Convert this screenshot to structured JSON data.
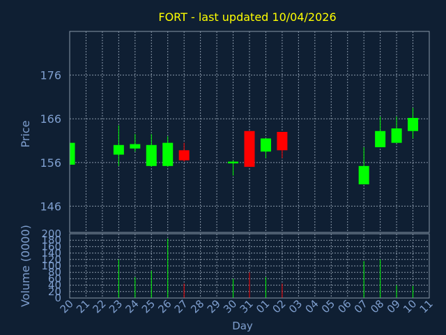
{
  "chart_data": [
    {
      "type": "candlestick",
      "title": "FORT - last updated 10/04/2026",
      "ylabel": "Price",
      "xlabel": "Day",
      "ylim": [
        140,
        186
      ],
      "yticks": [
        146,
        156,
        166,
        176
      ],
      "grid": true,
      "x_labels": [
        "20",
        "21",
        "22",
        "23",
        "24",
        "25",
        "26",
        "27",
        "28",
        "29",
        "30",
        "31",
        "01",
        "02",
        "03",
        "04",
        "05",
        "06",
        "07",
        "08",
        "09",
        "10",
        "11"
      ],
      "candles": [
        {
          "day": "20",
          "open": 155.5,
          "close": 160.5,
          "high": 160.5,
          "low": 155.5
        },
        {
          "day": "23",
          "open": 157.8,
          "close": 160.0,
          "high": 164.5,
          "low": 155.2
        },
        {
          "day": "24",
          "open": 159.2,
          "close": 160.2,
          "high": 162.5,
          "low": 158.5
        },
        {
          "day": "25",
          "open": 155.2,
          "close": 160.0,
          "high": 162.5,
          "low": 155.0
        },
        {
          "day": "26",
          "open": 155.2,
          "close": 160.5,
          "high": 162.0,
          "low": 155.0
        },
        {
          "day": "27",
          "open": 158.8,
          "close": 156.5,
          "high": 160.5,
          "low": 156.2
        },
        {
          "day": "30",
          "open": 155.8,
          "close": 156.2,
          "high": 156.5,
          "low": 153.0
        },
        {
          "day": "31",
          "open": 163.2,
          "close": 155.0,
          "high": 163.2,
          "low": 155.0
        },
        {
          "day": "01",
          "open": 158.5,
          "close": 161.5,
          "high": 161.5,
          "low": 157.0
        },
        {
          "day": "02",
          "open": 163.0,
          "close": 158.8,
          "high": 163.0,
          "low": 157.0
        },
        {
          "day": "07",
          "open": 151.0,
          "close": 155.2,
          "high": 159.5,
          "low": 151.0
        },
        {
          "day": "08",
          "open": 159.5,
          "close": 163.2,
          "high": 166.5,
          "low": 159.5
        },
        {
          "day": "09",
          "open": 160.5,
          "close": 163.8,
          "high": 166.5,
          "low": 160.5
        },
        {
          "day": "10",
          "open": 163.2,
          "close": 166.2,
          "high": 168.5,
          "low": 161.5
        }
      ]
    },
    {
      "type": "bar",
      "ylabel": "Volume (0000)",
      "ylim": [
        0,
        200
      ],
      "yticks": [
        0,
        20,
        40,
        60,
        80,
        100,
        120,
        140,
        160,
        180,
        200
      ],
      "grid": true,
      "bars": [
        {
          "day": "23",
          "value": 120,
          "direction": "up"
        },
        {
          "day": "24",
          "value": 65,
          "direction": "up"
        },
        {
          "day": "25",
          "value": 85,
          "direction": "up"
        },
        {
          "day": "26",
          "value": 185,
          "direction": "up"
        },
        {
          "day": "27",
          "value": 45,
          "direction": "down"
        },
        {
          "day": "30",
          "value": 60,
          "direction": "up"
        },
        {
          "day": "31",
          "value": 80,
          "direction": "down"
        },
        {
          "day": "01",
          "value": 65,
          "direction": "up"
        },
        {
          "day": "02",
          "value": 45,
          "direction": "down"
        },
        {
          "day": "07",
          "value": 115,
          "direction": "up"
        },
        {
          "day": "08",
          "value": 120,
          "direction": "up"
        },
        {
          "day": "09",
          "value": 40,
          "direction": "up"
        },
        {
          "day": "10",
          "value": 38,
          "direction": "up"
        }
      ]
    }
  ],
  "colors": {
    "background": "#0f1f33",
    "title": "#ffff00",
    "axis_text": "#7f9fcf",
    "grid": "#8a99aa",
    "up": "#00ff00",
    "down": "#ff0000"
  }
}
